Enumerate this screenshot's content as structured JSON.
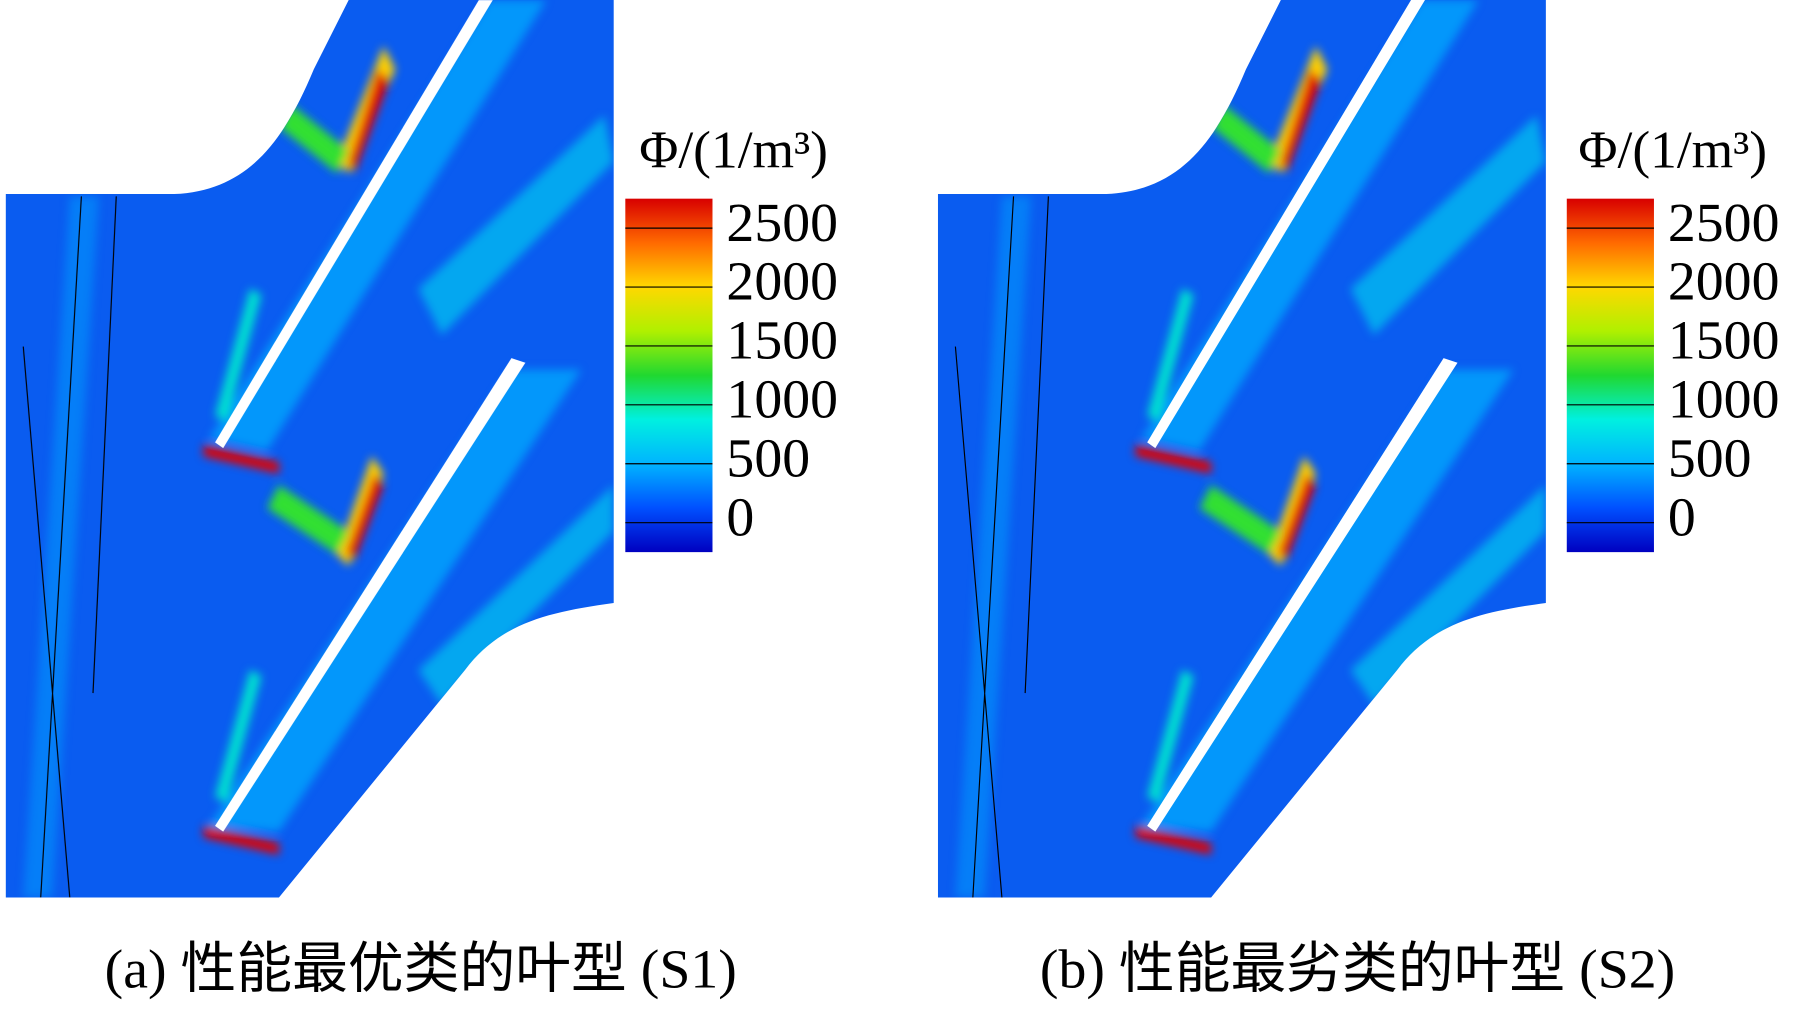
{
  "chart_data": [
    {
      "type": "contour",
      "caption": "(a) 性能最优类的叶型 (S1)",
      "colorbar_title": "Φ/(1/m³)",
      "clim": [
        -250,
        2750
      ],
      "cticks": [
        0,
        500,
        1000,
        1500,
        2000,
        2500
      ],
      "colors": [
        "#0000c0",
        "#0050ff",
        "#00b4ff",
        "#00f0e0",
        "#20d830",
        "#b0f000",
        "#ffd800",
        "#ff6a00",
        "#d80000"
      ]
    },
    {
      "type": "contour",
      "caption": "(b) 性能最劣类的叶型 (S2)",
      "colorbar_title": "Φ/(1/m³)",
      "clim": [
        -250,
        2750
      ],
      "cticks": [
        0,
        500,
        1000,
        1500,
        2000,
        2500
      ],
      "colors": [
        "#0000c0",
        "#0050ff",
        "#00b4ff",
        "#00f0e0",
        "#20d830",
        "#b0f000",
        "#ffd800",
        "#ff6a00",
        "#d80000"
      ]
    }
  ]
}
